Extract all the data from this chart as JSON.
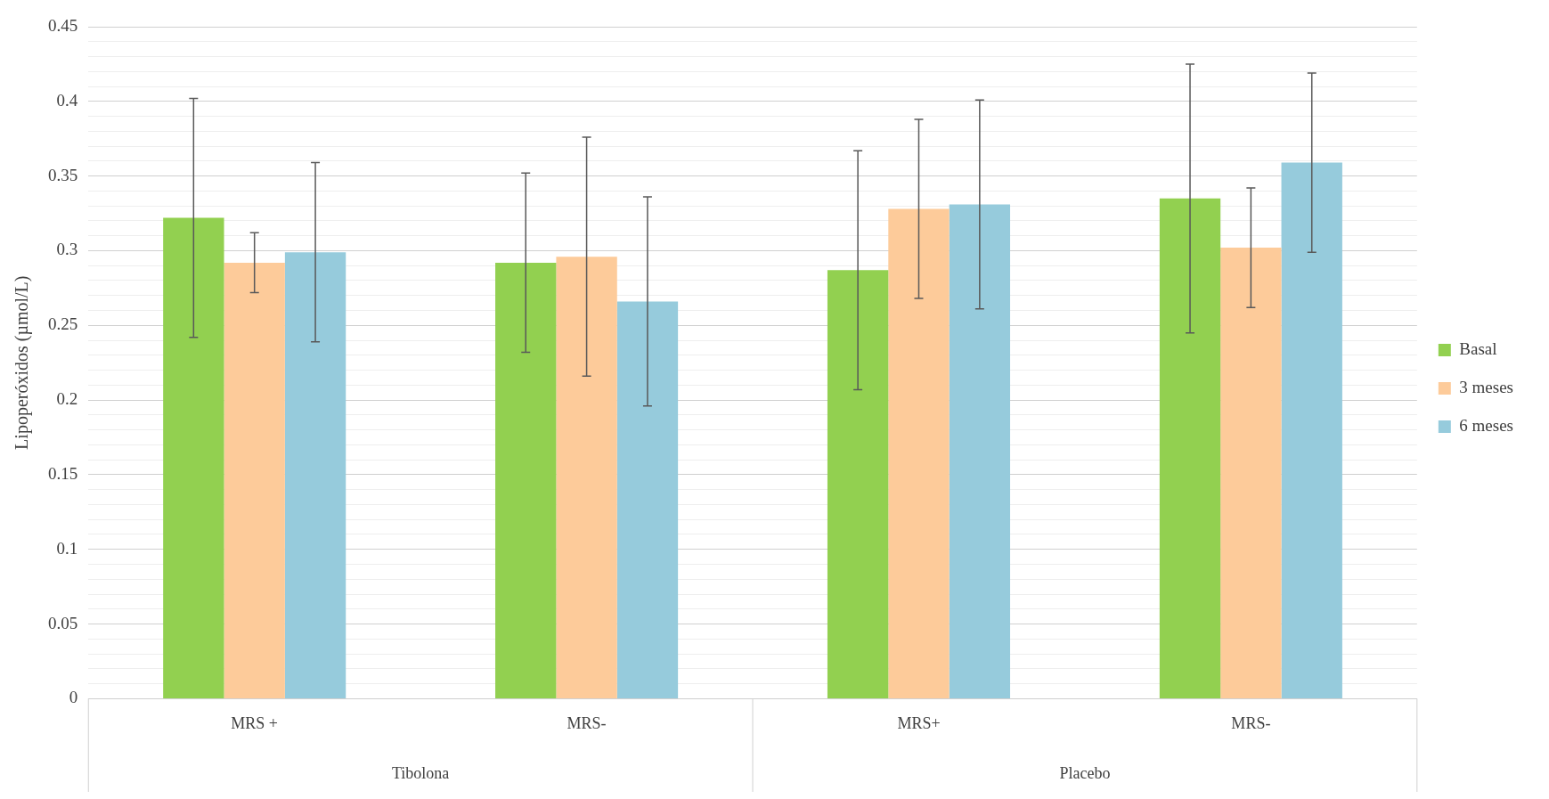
{
  "chart_data": {
    "type": "bar",
    "ylabel": "Lipoperóxidos (µmol/L)",
    "categories": [
      "MRS +",
      "MRS-",
      "MRS+",
      "MRS-"
    ],
    "series": [
      {
        "name": "Basal",
        "color": "#92d050",
        "values": [
          0.322,
          0.292,
          0.287,
          0.335
        ],
        "errors": [
          0.08,
          0.06,
          0.08,
          0.09
        ]
      },
      {
        "name": "3 meses",
        "color": "#fdcb9a",
        "values": [
          0.292,
          0.296,
          0.328,
          0.302
        ],
        "errors": [
          0.02,
          0.08,
          0.06,
          0.04
        ]
      },
      {
        "name": "6 meses",
        "color": "#96cbdc",
        "values": [
          0.299,
          0.266,
          0.331,
          0.359
        ],
        "errors": [
          0.06,
          0.07,
          0.07,
          0.06
        ]
      }
    ],
    "ylim": [
      0,
      0.45
    ],
    "yticks": [
      0,
      {
        "value": 0.01,
        "label": null
      },
      {
        "value": 0.02,
        "label": null
      },
      {
        "value": 0.03,
        "label": null
      },
      {
        "value": 0.04,
        "label": null
      },
      0.05,
      {
        "value": 0.06,
        "label": null
      },
      {
        "value": 0.07,
        "label": null
      },
      {
        "value": 0.08,
        "label": null
      },
      {
        "value": 0.09,
        "label": null
      },
      0.1,
      {
        "value": 0.11,
        "label": null
      },
      {
        "value": 0.12,
        "label": null
      },
      {
        "value": 0.13,
        "label": null
      },
      {
        "value": 0.14,
        "label": null
      },
      0.15,
      {
        "value": 0.16,
        "label": null
      },
      {
        "value": 0.17,
        "label": null
      },
      {
        "value": 0.18,
        "label": null
      },
      {
        "value": 0.19,
        "label": null
      },
      0.2,
      {
        "value": 0.21,
        "label": null
      },
      {
        "value": 0.22,
        "label": null
      },
      {
        "value": 0.23,
        "label": null
      },
      {
        "value": 0.24,
        "label": null
      },
      0.25,
      {
        "value": 0.26,
        "label": null
      },
      {
        "value": 0.27,
        "label": null
      },
      {
        "value": 0.28,
        "label": null
      },
      {
        "value": 0.29,
        "label": null
      },
      0.3,
      {
        "value": 0.31,
        "label": null
      },
      {
        "value": 0.32,
        "label": null
      },
      {
        "value": 0.33,
        "label": null
      },
      {
        "value": 0.34,
        "label": null
      },
      0.35,
      {
        "value": 0.36,
        "label": null
      },
      {
        "value": 0.37,
        "label": null
      },
      {
        "value": 0.38,
        "label": null
      },
      {
        "value": 0.39,
        "label": null
      },
      0.4,
      {
        "value": 0.41,
        "label": null
      },
      {
        "value": 0.42,
        "label": null
      },
      {
        "value": 0.43,
        "label": null
      },
      {
        "value": 0.44,
        "label": null
      },
      0.45
    ],
    "grid": "y",
    "legend": "right",
    "annotations": [
      "Tibolona",
      "Placebo"
    ]
  }
}
